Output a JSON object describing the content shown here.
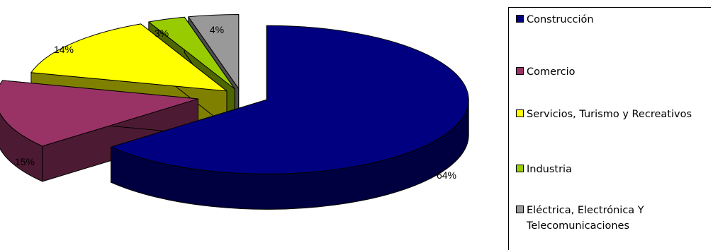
{
  "chart_data": {
    "type": "pie",
    "variant": "3d-exploded",
    "title": "",
    "legend_position": "right",
    "slices": [
      {
        "name": "Construcción",
        "value": 64,
        "label": "64%",
        "color": "#000080",
        "side_color": "#000040"
      },
      {
        "name": "Comercio",
        "value": 15,
        "label": "15%",
        "color": "#993366",
        "side_color": "#4d1a33"
      },
      {
        "name": "Servicios, Turismo y Recreativos",
        "value": 14,
        "label": "14%",
        "color": "#ffff00",
        "side_color": "#808000"
      },
      {
        "name": "Industria",
        "value": 3,
        "label": "3%",
        "color": "#99cc00",
        "side_color": "#4d6600"
      },
      {
        "name": "Eléctrica, Electrónica Y Telecomunicaciones",
        "value": 4,
        "label": "4%",
        "color": "#999999",
        "side_color": "#4d4d4d"
      }
    ]
  }
}
